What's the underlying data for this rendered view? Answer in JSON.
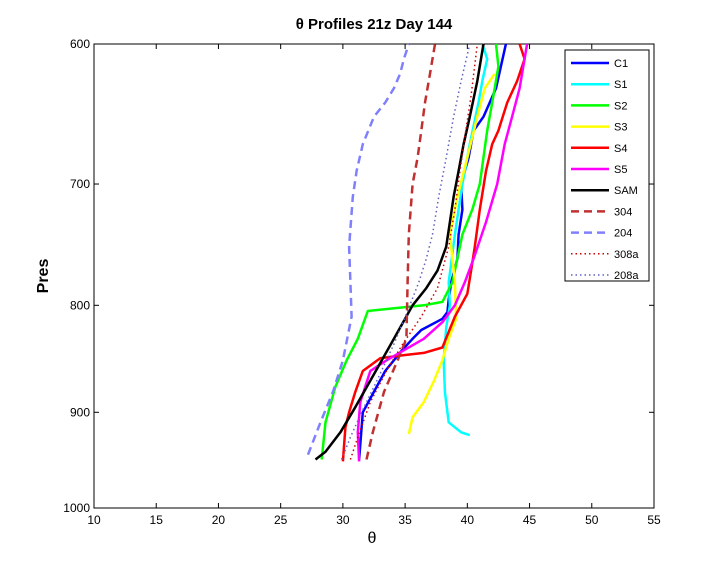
{
  "chart_data": {
    "type": "line",
    "title": "θ Profiles 21z Day 144",
    "xlabel": "θ",
    "ylabel": "Pres",
    "xlim": [
      10,
      55
    ],
    "ylim": [
      600,
      1000
    ],
    "y_reversed": true,
    "y_scale": "log",
    "grid": false,
    "legend_position": "top-right",
    "xticks": [
      "10",
      "15",
      "20",
      "25",
      "30",
      "35",
      "40",
      "45",
      "50",
      "55"
    ],
    "yticks": [
      "600",
      "700",
      "800",
      "900",
      "1000"
    ],
    "series": [
      {
        "name": "C1",
        "color": "#0000ff",
        "dash": "solid",
        "x": [
          31.3,
          31.6,
          33.4,
          34.8,
          35.6,
          36.3,
          38.0,
          38.4,
          38.5,
          38.7,
          39.2,
          39.3,
          39.6,
          39.5,
          40.1,
          40.5,
          41.3,
          41.8,
          42.3,
          42.7,
          43.1
        ],
        "y": [
          948,
          900,
          860,
          840,
          830,
          822,
          812,
          806,
          795,
          780,
          760,
          740,
          720,
          700,
          680,
          660,
          650,
          640,
          630,
          615,
          600
        ]
      },
      {
        "name": "S1",
        "color": "#00ffff",
        "dash": "solid",
        "x": [
          40.2,
          39.5,
          38.5,
          38.2,
          38.1,
          38.3,
          38.6,
          38.5,
          39.0,
          39.6,
          40.2,
          40.9,
          41.2,
          41.6,
          41.2
        ],
        "y": [
          923,
          920,
          910,
          880,
          850,
          820,
          800,
          780,
          740,
          700,
          670,
          640,
          625,
          610,
          600
        ]
      },
      {
        "name": "S2",
        "color": "#00ff00",
        "dash": "solid",
        "x": [
          28.3,
          28.6,
          29.4,
          30.3,
          31.2,
          32.0,
          36.5,
          38.0,
          38.8,
          39.6,
          40.4,
          41.0,
          41.6,
          42.2,
          42.5,
          42.3
        ],
        "y": [
          948,
          910,
          875,
          850,
          830,
          805,
          800,
          797,
          780,
          740,
          720,
          700,
          660,
          630,
          615,
          600
        ]
      },
      {
        "name": "S3",
        "color": "#ffff00",
        "dash": "solid",
        "x": [
          35.3,
          35.6,
          36.5,
          37.3,
          38.0,
          38.5,
          39.1,
          39.0,
          38.6,
          39.2,
          40.0,
          40.8,
          41.4,
          42.2
        ],
        "y": [
          922,
          905,
          890,
          870,
          850,
          830,
          812,
          780,
          740,
          710,
          680,
          650,
          630,
          620
        ]
      },
      {
        "name": "S4",
        "color": "#ff0000",
        "dash": "solid",
        "x": [
          30.0,
          30.2,
          30.5,
          31.0,
          31.6,
          33.0,
          35.0,
          36.5,
          38.0,
          39.0,
          40.0,
          40.3,
          40.6,
          41.0,
          41.5,
          42.0,
          42.5,
          43.2,
          44.0,
          44.6,
          44.2
        ],
        "y": [
          950,
          915,
          900,
          880,
          860,
          848,
          845,
          843,
          838,
          810,
          790,
          770,
          750,
          720,
          690,
          670,
          660,
          640,
          625,
          610,
          600
        ]
      },
      {
        "name": "S5",
        "color": "#ff00ff",
        "dash": "solid",
        "x": [
          31.3,
          31.2,
          31.4,
          32.2,
          33.5,
          35.0,
          36.5,
          38.0,
          39.0,
          39.8,
          40.5,
          41.5,
          42.4,
          43.0,
          43.6,
          44.2,
          44.8
        ],
        "y": [
          950,
          920,
          890,
          860,
          850,
          840,
          830,
          815,
          800,
          780,
          760,
          730,
          700,
          670,
          650,
          630,
          600
        ]
      },
      {
        "name": "SAM",
        "color": "#000000",
        "dash": "solid",
        "x": [
          27.8,
          28.6,
          29.8,
          31.0,
          32.4,
          34.1,
          35.6,
          36.7,
          37.6,
          38.3,
          38.6,
          38.9,
          39.3,
          39.7,
          40.2,
          40.8,
          41.3
        ],
        "y": [
          948,
          940,
          920,
          895,
          865,
          830,
          800,
          785,
          770,
          750,
          730,
          710,
          690,
          670,
          650,
          625,
          600
        ]
      },
      {
        "name": "304",
        "color": "#c03030",
        "dash": "dashed",
        "x": [
          31.9,
          32.4,
          33.3,
          34.4,
          35.1,
          35.2,
          35.3,
          35.6,
          36.0,
          36.3,
          36.6,
          37.0,
          37.4
        ],
        "y": [
          948,
          920,
          880,
          850,
          830,
          780,
          740,
          700,
          680,
          660,
          640,
          620,
          600
        ]
      },
      {
        "name": "204",
        "color": "#8080ff",
        "dash": "dashed",
        "x": [
          27.2,
          28.2,
          29.2,
          30.0,
          30.7,
          30.6,
          30.5,
          30.8,
          31.1,
          31.6,
          32.5,
          33.4,
          34.1,
          34.6,
          34.9,
          35.3
        ],
        "y": [
          943,
          910,
          880,
          850,
          810,
          780,
          750,
          710,
          690,
          670,
          650,
          640,
          630,
          620,
          610,
          600
        ]
      },
      {
        "name": "308a",
        "color": "#cc0000",
        "dash": "dotted",
        "x": [
          30.6,
          31.2,
          32.2,
          33.5,
          34.8,
          36.3,
          37.6,
          38.5,
          39.0,
          39.4,
          39.8,
          40.3,
          40.8
        ],
        "y": [
          948,
          925,
          890,
          860,
          835,
          810,
          785,
          750,
          720,
          690,
          665,
          635,
          600
        ]
      },
      {
        "name": "208a",
        "color": "#6060c0",
        "dash": "dotted",
        "x": [
          29.9,
          30.6,
          31.7,
          32.9,
          34.1,
          35.2,
          36.1,
          36.7,
          37.2,
          37.7,
          38.3,
          38.9,
          39.5,
          40.2
        ],
        "y": [
          948,
          925,
          895,
          865,
          835,
          805,
          780,
          760,
          740,
          710,
          680,
          650,
          625,
          600
        ]
      }
    ]
  }
}
